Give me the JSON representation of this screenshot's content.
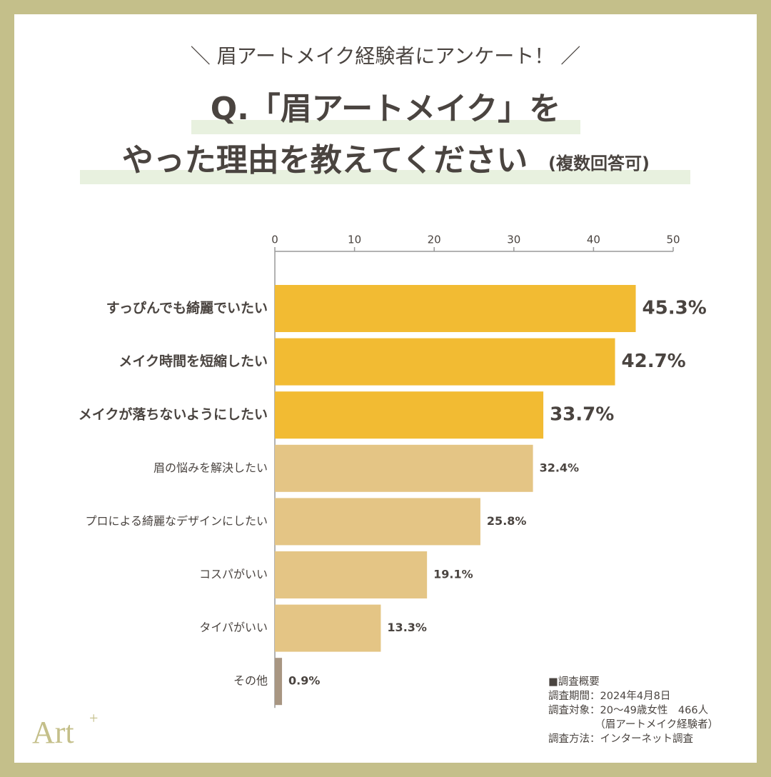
{
  "chart_data": {
    "type": "hbar",
    "subtitle": "＼ 眉アートメイク経験者にアンケート！ ／",
    "title_line1": "Q.「眉アートメイク」を",
    "title_line2": "やった理由を教えてください",
    "title_note": "(複数回答可)",
    "categories": [
      "すっぴんでも綺麗でいたい",
      "メイク時間を短縮したい",
      "メイクが落ちないようにしたい",
      "眉の悩みを解決したい",
      "プロによる綺麗なデザインにしたい",
      "コスパがいい",
      "タイパがいい",
      "その他"
    ],
    "values": [
      45.3,
      42.7,
      33.7,
      32.4,
      25.8,
      19.1,
      13.3,
      0.9
    ],
    "value_labels": [
      "45.3%",
      "42.7%",
      "33.7%",
      "32.4%",
      "25.8%",
      "19.1%",
      "13.3%",
      "0.9%"
    ],
    "colors": [
      "#f2bb33",
      "#f2bb33",
      "#f2bb33",
      "#e4c585",
      "#e4c585",
      "#e4c585",
      "#e4c585",
      "#a89682"
    ],
    "xlim": [
      0,
      50
    ],
    "xticks": [
      0,
      10,
      20,
      30,
      40,
      50
    ],
    "notes": [
      "■調査概要",
      "調査期間：2024年4月8日",
      "調査対象：20〜49歳女性　466人",
      "　　　　　（眉アートメイク経験者）",
      "調査方法：インターネット調査"
    ],
    "logo": "Art",
    "logo_sup": "+"
  }
}
